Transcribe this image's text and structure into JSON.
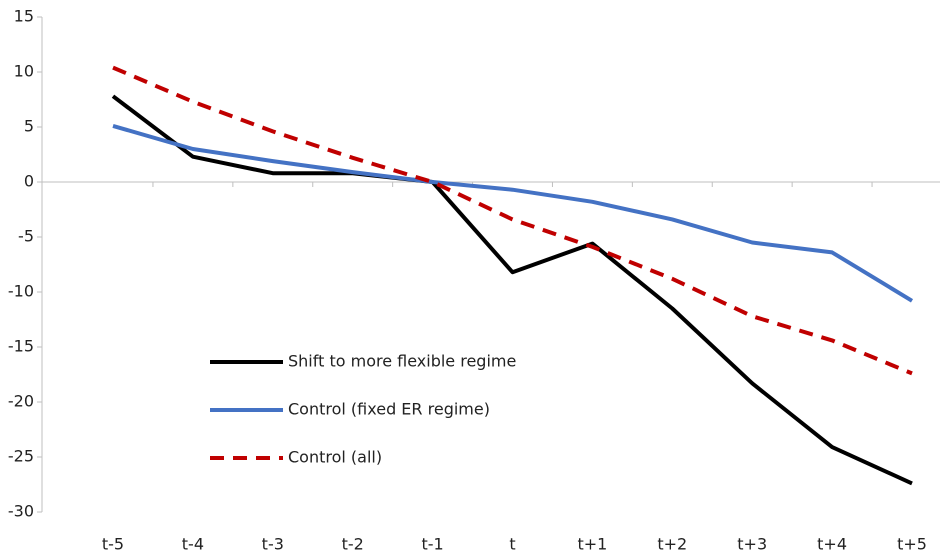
{
  "chart_data": {
    "type": "line",
    "categories": [
      "t-5",
      "t-4",
      "t-3",
      "t-2",
      "t-1",
      "t",
      "t+1",
      "t+2",
      "t+3",
      "t+4",
      "t+5"
    ],
    "series": [
      {
        "name": "Shift to more flexible regime",
        "color": "#000000",
        "dash": false,
        "values": [
          7.8,
          2.3,
          0.8,
          0.8,
          0,
          -8.2,
          -5.6,
          -11.5,
          -18.3,
          -24.1,
          -27.4
        ]
      },
      {
        "name": "Control (fixed ER regime)",
        "color": "#4472c4",
        "dash": false,
        "values": [
          5.1,
          3.0,
          1.9,
          0.9,
          0,
          -0.7,
          -1.8,
          -3.4,
          -5.5,
          -6.4,
          -10.8
        ]
      },
      {
        "name": "Control (all)",
        "color": "#c00000",
        "dash": true,
        "values": [
          10.4,
          7.3,
          4.6,
          2.2,
          0,
          -3.4,
          -5.9,
          -8.8,
          -12.2,
          -14.4,
          -17.4
        ]
      }
    ],
    "ylim": [
      -30,
      15
    ],
    "yticks": [
      -30,
      -25,
      -20,
      -15,
      -10,
      -5,
      0,
      5,
      10,
      15
    ]
  }
}
